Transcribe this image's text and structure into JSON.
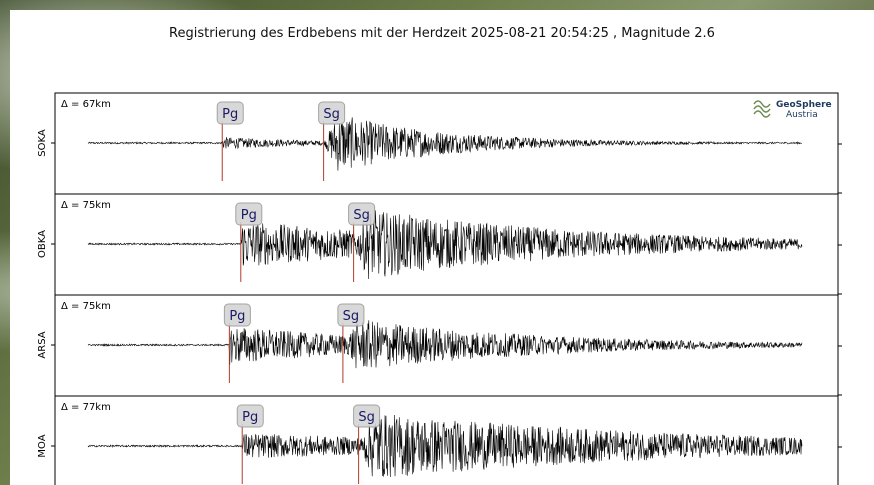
{
  "title": "Registrierung des Erdbebens mit der Herdzeit 2025-08-21 20:54:25 , Magnitude 2.6",
  "logo": {
    "line1": "GeoSphere",
    "line2": "Austria",
    "icon": "geosphere-logo-icon"
  },
  "colors": {
    "trace": "#000000",
    "pick": "#b23a2a",
    "phase_box": "#d4d4d4",
    "phase_text": "#1a1a66",
    "frame": "#000000"
  },
  "chart_data": {
    "type": "line",
    "title": "Registrierung des Erdbebens mit der Herdzeit 2025-08-21 20:54:25 , Magnitude 2.6",
    "xlabel": "",
    "ylabel": "",
    "grid": false,
    "series": [
      {
        "name": "SOKA",
        "distance": "Δ = 67km",
        "picks": [
          {
            "phase": "Pg",
            "x": 0.188
          },
          {
            "phase": "Sg",
            "x": 0.33
          }
        ],
        "noise": 0.02,
        "p_amp": 0.14,
        "s_amp": 0.75,
        "decay": 0.16
      },
      {
        "name": "OBKA",
        "distance": "Δ = 75km",
        "picks": [
          {
            "phase": "Pg",
            "x": 0.214
          },
          {
            "phase": "Sg",
            "x": 0.372
          }
        ],
        "noise": 0.02,
        "p_amp": 0.55,
        "s_amp": 0.85,
        "decay": 0.32
      },
      {
        "name": "ARSA",
        "distance": "Δ = 75km",
        "picks": [
          {
            "phase": "Pg",
            "x": 0.198
          },
          {
            "phase": "Sg",
            "x": 0.357
          }
        ],
        "noise": 0.02,
        "p_amp": 0.45,
        "s_amp": 0.65,
        "decay": 0.26
      },
      {
        "name": "MOA",
        "distance": "Δ = 77km",
        "picks": [
          {
            "phase": "Pg",
            "x": 0.216
          },
          {
            "phase": "Sg",
            "x": 0.379
          }
        ],
        "noise": 0.02,
        "p_amp": 0.3,
        "s_amp": 0.8,
        "decay": 0.45
      }
    ]
  }
}
